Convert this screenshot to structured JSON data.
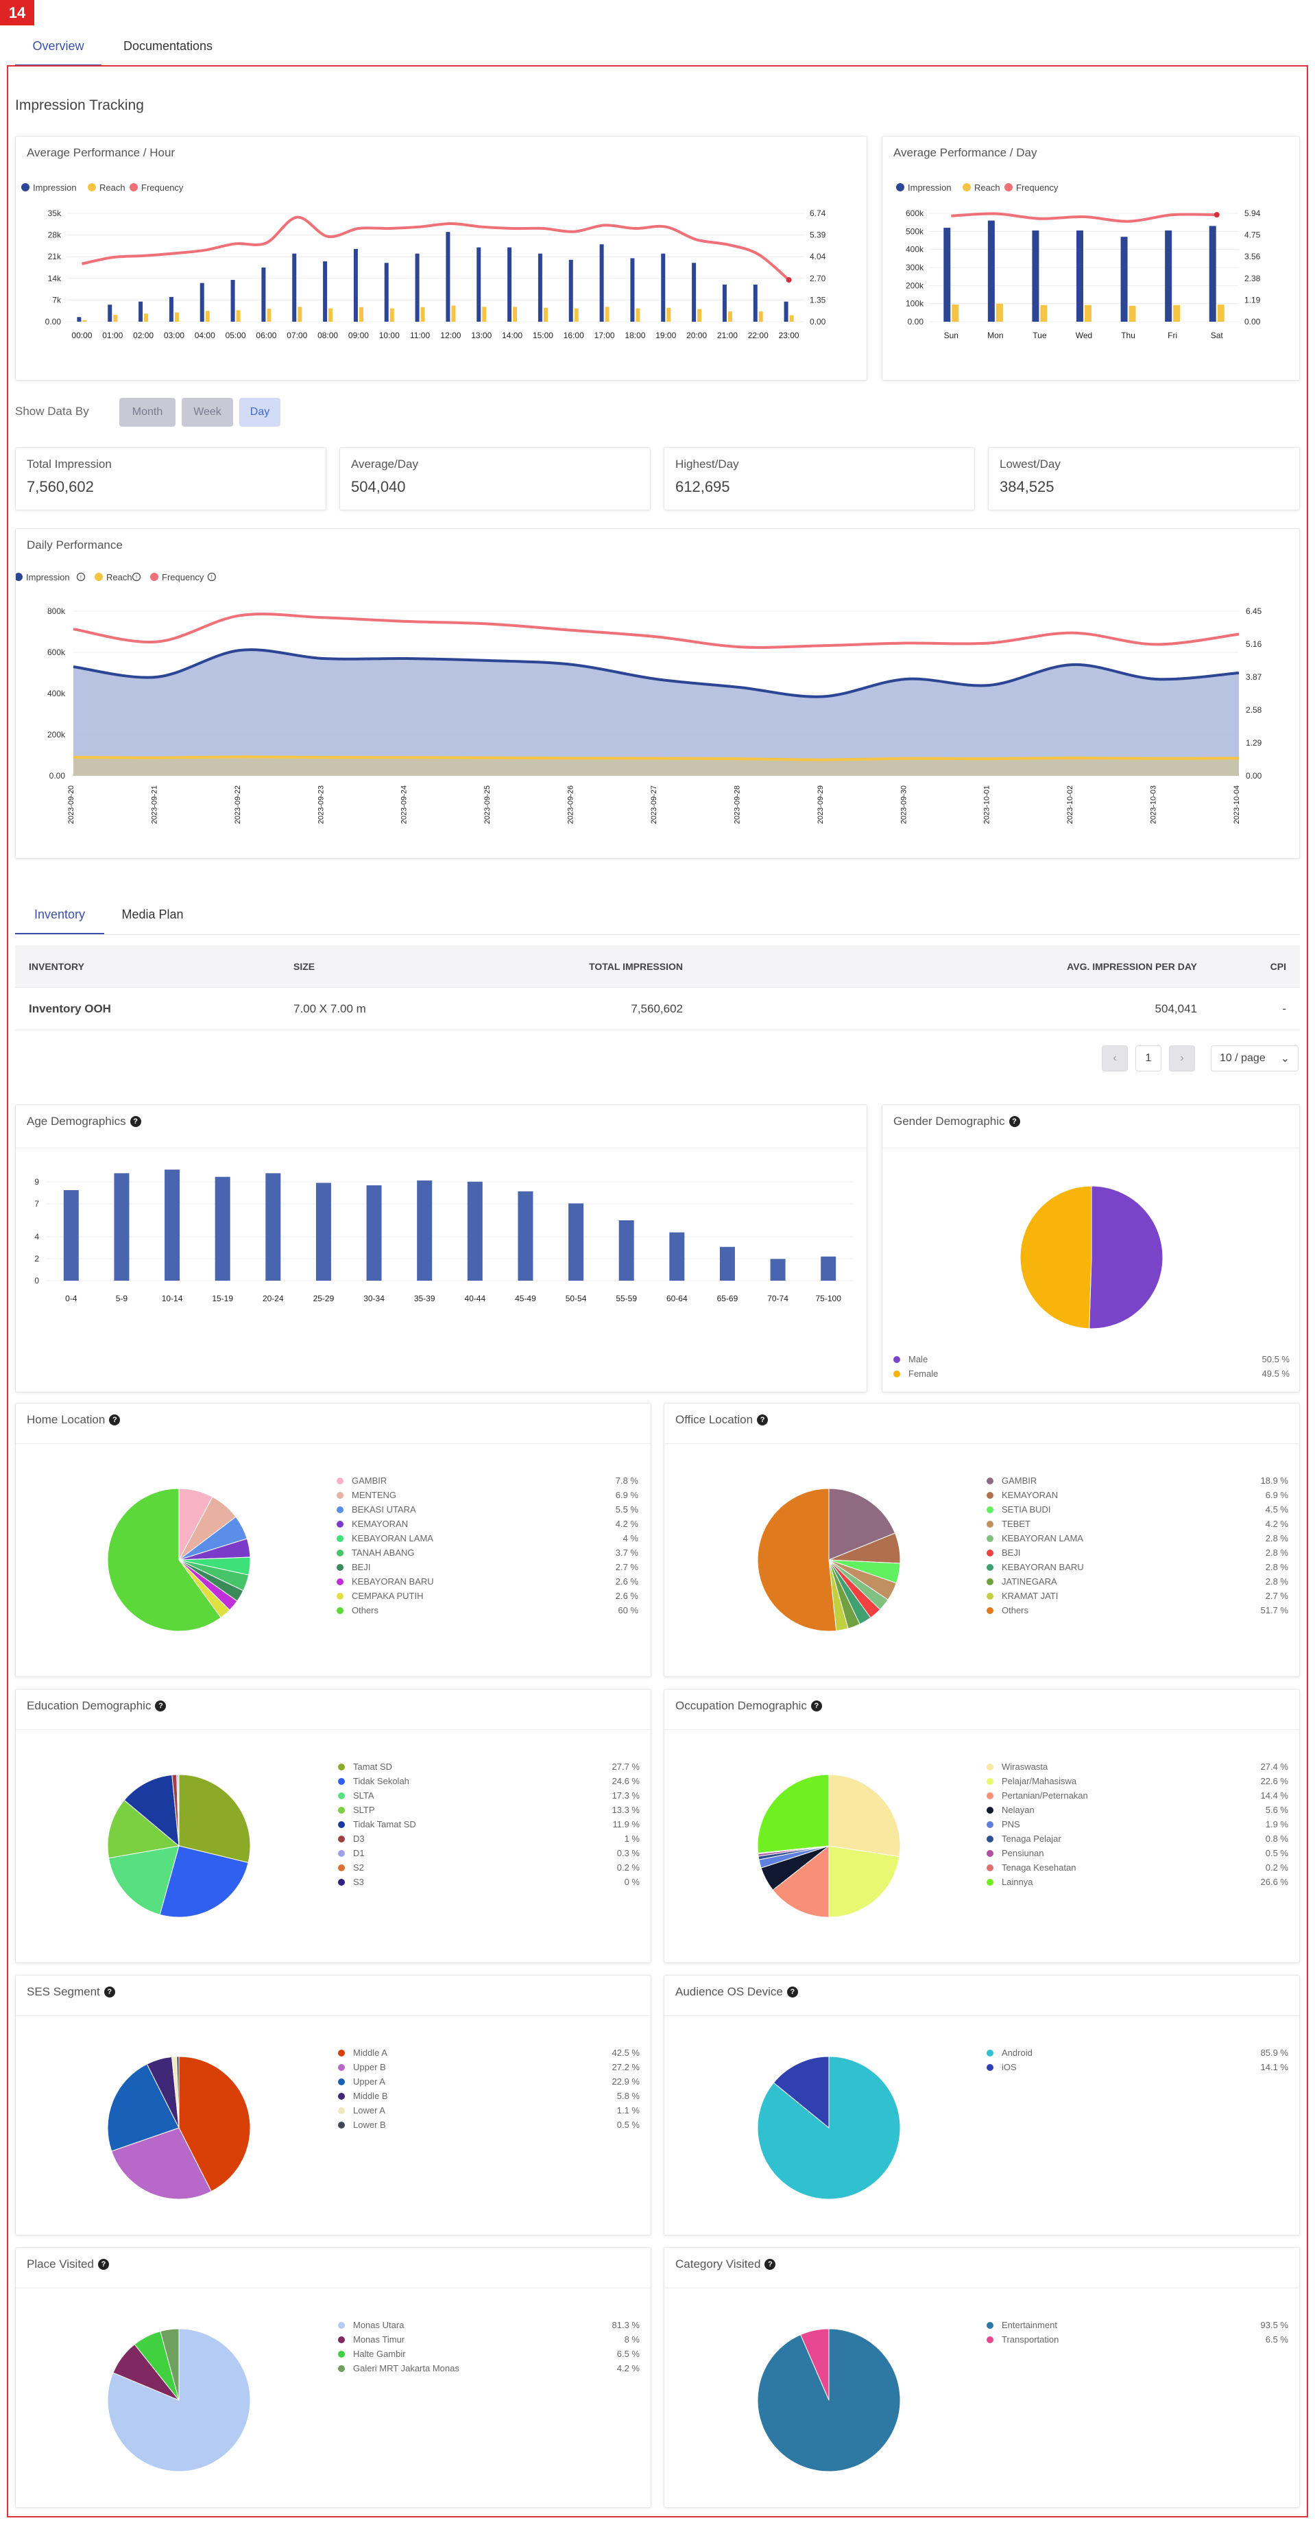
{
  "badge": "14",
  "top_tabs": [
    {
      "label": "Overview"
    },
    {
      "label": "Documentations"
    }
  ],
  "section_title": "Impression Tracking",
  "hour_chart": {
    "title": "Average Performance / Hour",
    "legend": [
      "Impression",
      "Reach",
      "Frequency"
    ],
    "colors": {
      "impression": "#2c4594",
      "reach": "#f6c445",
      "frequency": "#f07078"
    }
  },
  "day_chart": {
    "title": "Average Performance / Day",
    "legend": [
      "Impression",
      "Reach",
      "Frequency"
    ]
  },
  "show_data_by": {
    "label": "Show Data By",
    "options": [
      "Month",
      "Week",
      "Day"
    ],
    "selected": "Day"
  },
  "stats": [
    {
      "label": "Total Impression",
      "value": "7,560,602"
    },
    {
      "label": "Average/Day",
      "value": "504,040"
    },
    {
      "label": "Highest/Day",
      "value": "612,695"
    },
    {
      "label": "Lowest/Day",
      "value": "384,525"
    }
  ],
  "daily_chart": {
    "title": "Daily Performance",
    "legend": [
      "Impression",
      "Reach",
      "Frequency"
    ]
  },
  "bottom_tabs": [
    {
      "label": "Inventory"
    },
    {
      "label": "Media Plan"
    }
  ],
  "table": {
    "headers": [
      "INVENTORY",
      "SIZE",
      "TOTAL IMPRESSION",
      "AVG. IMPRESSION PER DAY",
      "CPI"
    ],
    "rows": [
      [
        "Inventory OOH",
        "7.00 X 7.00 m",
        "7,560,602",
        "504,041",
        "-"
      ]
    ]
  },
  "pagination": {
    "prev": "‹",
    "page": "1",
    "next": "›",
    "page_size": "10 / page",
    "caret": "⌄"
  },
  "age_title": "Age Demographics",
  "gender_title": "Gender Demographic",
  "home_title": "Home Location",
  "office_title": "Office Location",
  "education_title": "Education Demographic",
  "occupation_title": "Occupation Demographic",
  "ses_title": "SES Segment",
  "os_title": "Audience OS Device",
  "place_title": "Place Visited",
  "category_title": "Category Visited",
  "chart_data": [
    {
      "id": "hour",
      "type": "bar",
      "title": "Average Performance / Hour",
      "categories": [
        "00:00",
        "01:00",
        "02:00",
        "03:00",
        "04:00",
        "05:00",
        "06:00",
        "07:00",
        "08:00",
        "09:00",
        "10:00",
        "11:00",
        "12:00",
        "13:00",
        "14:00",
        "15:00",
        "16:00",
        "17:00",
        "18:00",
        "19:00",
        "20:00",
        "21:00",
        "22:00",
        "23:00"
      ],
      "series": [
        {
          "name": "Impression",
          "values": [
            1500,
            5500,
            6500,
            8000,
            12500,
            13500,
            17500,
            22000,
            19500,
            23500,
            19000,
            22000,
            29000,
            24000,
            24000,
            22000,
            20000,
            25000,
            20500,
            22000,
            19000,
            12000,
            12000,
            6500
          ]
        },
        {
          "name": "Reach",
          "values": [
            500,
            2200,
            2600,
            3000,
            3500,
            3700,
            4200,
            4800,
            4300,
            4700,
            4300,
            4700,
            5200,
            4800,
            4800,
            4500,
            4300,
            4800,
            4300,
            4500,
            4100,
            3300,
            3300,
            2100
          ]
        },
        {
          "name": "Frequency",
          "values": [
            3.6,
            4.0,
            4.1,
            4.25,
            4.45,
            4.85,
            4.9,
            6.5,
            5.3,
            5.8,
            5.8,
            5.9,
            6.1,
            5.9,
            5.8,
            5.8,
            5.6,
            6.0,
            5.8,
            5.9,
            5.1,
            4.8,
            4.2,
            2.6
          ]
        }
      ],
      "ylim": [
        0,
        35000
      ],
      "yticks_left": [
        "35k",
        "28k",
        "21k",
        "14k",
        "7k",
        "0.00"
      ],
      "yticks_right": [
        "6.74",
        "5.39",
        "4.04",
        "2.70",
        "1.35",
        "0.00"
      ],
      "y2lim": [
        0,
        6.74
      ]
    },
    {
      "id": "day",
      "type": "bar",
      "title": "Average Performance / Day",
      "categories": [
        "Sun",
        "Mon",
        "Tue",
        "Wed",
        "Thu",
        "Fri",
        "Sat"
      ],
      "series": [
        {
          "name": "Impression",
          "values": [
            520000,
            560000,
            505000,
            505000,
            470000,
            505000,
            530000
          ]
        },
        {
          "name": "Reach",
          "values": [
            95000,
            100000,
            92000,
            92000,
            88000,
            92000,
            95000
          ]
        },
        {
          "name": "Frequency",
          "values": [
            5.8,
            5.92,
            5.65,
            5.75,
            5.5,
            5.86,
            5.86
          ]
        }
      ],
      "ylim": [
        0,
        600000
      ],
      "yticks_left": [
        "600k",
        "500k",
        "400k",
        "300k",
        "200k",
        "100k",
        "0.00"
      ],
      "yticks_right": [
        "5.94",
        "4.75",
        "3.56",
        "2.38",
        "1.19",
        "0.00"
      ],
      "y2lim": [
        0,
        5.94
      ]
    },
    {
      "id": "daily",
      "type": "area",
      "title": "Daily Performance",
      "categories": [
        "2023-09-20",
        "2023-09-21",
        "2023-09-22",
        "2023-09-23",
        "2023-09-24",
        "2023-09-25",
        "2023-09-26",
        "2023-09-27",
        "2023-09-28",
        "2023-09-29",
        "2023-09-30",
        "2023-10-01",
        "2023-10-02",
        "2023-10-03",
        "2023-10-04"
      ],
      "series": [
        {
          "name": "Impression",
          "values": [
            530000,
            480000,
            610000,
            570000,
            570000,
            560000,
            540000,
            470000,
            430000,
            385000,
            470000,
            440000,
            540000,
            470000,
            500000
          ]
        },
        {
          "name": "Reach",
          "values": [
            90000,
            88000,
            92000,
            90000,
            89000,
            88000,
            86000,
            85000,
            83000,
            78000,
            84000,
            83000,
            87000,
            84000,
            86000
          ]
        },
        {
          "name": "Frequency",
          "values": [
            5.75,
            5.25,
            6.28,
            6.2,
            6.05,
            5.95,
            5.7,
            5.45,
            5.05,
            5.1,
            5.2,
            5.2,
            5.6,
            5.15,
            5.55
          ]
        }
      ],
      "ylim": [
        0,
        800000
      ],
      "yticks_left": [
        "800k",
        "600k",
        "400k",
        "200k",
        "0.00"
      ],
      "yticks_right": [
        "6.45",
        "5.16",
        "3.87",
        "2.58",
        "1.29",
        "0.00"
      ],
      "y2lim": [
        0,
        6.45
      ]
    },
    {
      "id": "age",
      "type": "bar",
      "title": "Age Demographics",
      "categories": [
        "0-4",
        "5-9",
        "10-14",
        "15-19",
        "20-24",
        "25-29",
        "30-34",
        "35-39",
        "40-44",
        "45-49",
        "50-54",
        "55-59",
        "60-64",
        "65-69",
        "70-74",
        "75-100"
      ],
      "values": [
        7.5,
        8.9,
        9.2,
        8.6,
        8.9,
        8.1,
        7.9,
        8.3,
        8.2,
        7.4,
        6.4,
        5.0,
        4.0,
        2.8,
        1.8,
        2.0
      ],
      "ylim": [
        0,
        10
      ],
      "yticks": [
        "9",
        "7",
        "4",
        "2",
        "0"
      ]
    },
    {
      "id": "gender",
      "type": "pie",
      "labels": [
        "Male",
        "Female"
      ],
      "values": [
        50.5,
        49.5
      ],
      "colors": [
        "#7a44c9",
        "#f9b40b"
      ]
    },
    {
      "id": "home",
      "type": "pie",
      "labels": [
        "GAMBIR",
        "MENTENG",
        "BEKASI UTARA",
        "KEMAYORAN",
        "KEBAYORAN LAMA",
        "TANAH ABANG",
        "BEJI",
        "KEBAYORAN BARU",
        "CEMPAKA PUTIH",
        "Others"
      ],
      "values": [
        7.8,
        6.9,
        5.5,
        4.2,
        4,
        3.7,
        2.7,
        2.6,
        2.6,
        60
      ],
      "colors": [
        "#f8b4c4",
        "#e8b0a0",
        "#5b8ee8",
        "#7a3cc8",
        "#3ee07a",
        "#46c46a",
        "#3a8a5a",
        "#c030d8",
        "#e0e040",
        "#5cd83a"
      ]
    },
    {
      "id": "office",
      "type": "pie",
      "labels": [
        "GAMBIR",
        "KEMAYORAN",
        "SETIA BUDI",
        "TEBET",
        "KEBAYORAN LAMA",
        "BEJI",
        "KEBAYORAN BARU",
        "JATINEGARA",
        "KRAMAT JATI",
        "Others"
      ],
      "values": [
        18.9,
        6.9,
        4.5,
        4.2,
        2.8,
        2.8,
        2.8,
        2.8,
        2.7,
        51.7
      ],
      "colors": [
        "#906a80",
        "#b07050",
        "#60f060",
        "#c09060",
        "#80c080",
        "#f04040",
        "#40a070",
        "#70a040",
        "#c0d040",
        "#e07a1e"
      ]
    },
    {
      "id": "education",
      "type": "pie",
      "labels": [
        "Tamat SD",
        "Tidak Sekolah",
        "SLTA",
        "SLTP",
        "Tidak Tamat SD",
        "D3",
        "D1",
        "S2",
        "S3"
      ],
      "values": [
        27.7,
        24.6,
        17.3,
        13.3,
        11.9,
        1,
        0.3,
        0.2,
        0
      ],
      "colors": [
        "#8aaa28",
        "#3060f0",
        "#58e080",
        "#7ad040",
        "#1a3aa0",
        "#a04040",
        "#a0a0f0",
        "#e07030",
        "#302080"
      ]
    },
    {
      "id": "occupation",
      "type": "pie",
      "labels": [
        "Wiraswasta",
        "Pelajar/Mahasiswa",
        "Pertanian/Peternakan",
        "Nelayan",
        "PNS",
        "Tenaga Pelajar",
        "Pensiunan",
        "Tenaga Kesehatan",
        "Lainnya"
      ],
      "values": [
        27.4,
        22.6,
        14.4,
        5.6,
        1.9,
        0.8,
        0.5,
        0.2,
        26.6
      ],
      "colors": [
        "#f8e8a0",
        "#e8f870",
        "#f89078",
        "#101830",
        "#6080e0",
        "#305090",
        "#b050a0",
        "#e07070",
        "#70f020"
      ]
    },
    {
      "id": "ses",
      "type": "pie",
      "labels": [
        "Middle A",
        "Upper B",
        "Upper A",
        "Middle B",
        "Lower A",
        "Lower B"
      ],
      "values": [
        42.5,
        27.2,
        22.9,
        5.8,
        1.1,
        0.5
      ],
      "colors": [
        "#d84008",
        "#b868c8",
        "#1860b8",
        "#402878",
        "#f0e8c0",
        "#404858"
      ]
    },
    {
      "id": "os",
      "type": "pie",
      "labels": [
        "Android",
        "iOS"
      ],
      "values": [
        85.9,
        14.1
      ],
      "colors": [
        "#30c0d0",
        "#3040b0"
      ]
    },
    {
      "id": "place",
      "type": "pie",
      "labels": [
        "Monas Utara",
        "Monas Timur",
        "Halte Gambir",
        "Galeri MRT Jakarta Monas"
      ],
      "values": [
        81.3,
        8,
        6.5,
        4.2
      ],
      "colors": [
        "#b4ccf4",
        "#802860",
        "#40d040",
        "#70a060"
      ]
    },
    {
      "id": "category",
      "type": "pie",
      "labels": [
        "Entertainment",
        "Transportation"
      ],
      "values": [
        93.5,
        6.5
      ],
      "colors": [
        "#2e78a4",
        "#e84890"
      ]
    }
  ]
}
